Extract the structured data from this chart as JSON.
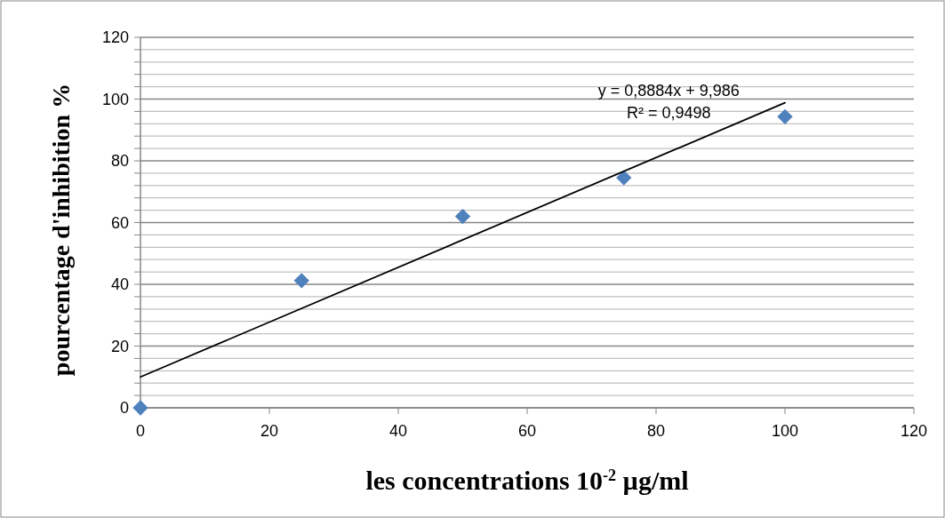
{
  "chart_data": {
    "type": "scatter",
    "xlabel": "les concentrations 10$^{-2}$  µg/ml",
    "ylabel": "pourcentage d'inhibition %",
    "xlim": [
      0,
      120
    ],
    "xticks": [
      0,
      20,
      40,
      60,
      80,
      100,
      120
    ],
    "ylim": [
      0,
      120
    ],
    "yticks": [
      0,
      {
        "value": 4,
        "label": null
      },
      {
        "value": 8,
        "label": null
      },
      {
        "value": 12,
        "label": null
      },
      {
        "value": 16,
        "label": null
      },
      20,
      {
        "value": 24,
        "label": null
      },
      {
        "value": 28,
        "label": null
      },
      {
        "value": 32,
        "label": null
      },
      {
        "value": 36,
        "label": null
      },
      40,
      {
        "value": 44,
        "label": null
      },
      {
        "value": 48,
        "label": null
      },
      {
        "value": 52,
        "label": null
      },
      {
        "value": 56,
        "label": null
      },
      60,
      {
        "value": 64,
        "label": null
      },
      {
        "value": 68,
        "label": null
      },
      {
        "value": 72,
        "label": null
      },
      {
        "value": 76,
        "label": null
      },
      80,
      {
        "value": 84,
        "label": null
      },
      {
        "value": 88,
        "label": null
      },
      {
        "value": 92,
        "label": null
      },
      {
        "value": 96,
        "label": null
      },
      100,
      {
        "value": 104,
        "label": null
      },
      {
        "value": 108,
        "label": null
      },
      {
        "value": 112,
        "label": null
      },
      {
        "value": 116,
        "label": null
      },
      120
    ],
    "grid": "y",
    "series": [
      {
        "x": [
          0,
          25,
          50,
          75,
          100
        ],
        "values": [
          0,
          41.2,
          62,
          74.5,
          94.3
        ],
        "color": "#4f81bd",
        "marker": "diamond"
      },
      {
        "type": "line",
        "x": [
          0,
          100
        ],
        "values": [
          10,
          98.8
        ],
        "color": "#000000",
        "marker": "none",
        "line_style": "solid"
      }
    ],
    "annotations": [
      "y = 0,8884x + 9,986",
      "R² = 0,9498"
    ]
  }
}
